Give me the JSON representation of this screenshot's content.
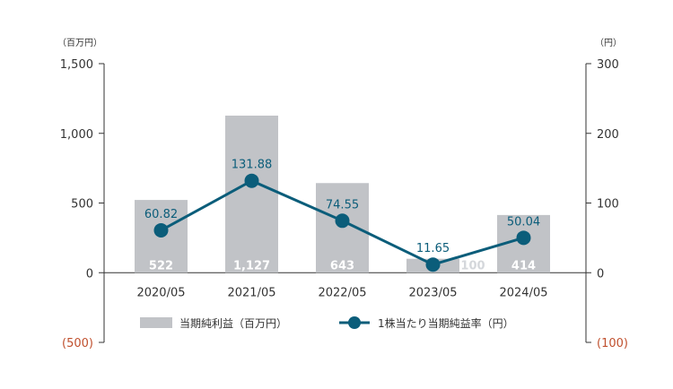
{
  "chart_data": {
    "type": "bar",
    "categories": [
      "2020/05",
      "2021/05",
      "2022/05",
      "2023/05",
      "2024/05"
    ],
    "series": [
      {
        "name": "当期純利益（百万円）",
        "type": "bar",
        "axis": "left",
        "values": [
          522,
          1127,
          643,
          100,
          414
        ],
        "value_labels": [
          "522",
          "1,127",
          "643",
          "100",
          "414"
        ],
        "color": "#c1c3c7"
      },
      {
        "name": "1株当たり当期純益率（円）",
        "type": "line",
        "axis": "right",
        "values": [
          60.82,
          131.88,
          74.55,
          11.65,
          50.04
        ],
        "value_labels": [
          "60.82",
          "131.88",
          "74.55",
          "11.65",
          "50.04"
        ],
        "color": "#0b5d7a"
      }
    ],
    "y_left": {
      "unit": "（百万円）",
      "ylim": [
        -500,
        1500
      ],
      "ticks": [
        1500,
        1000,
        500,
        0,
        -500
      ],
      "tick_labels": [
        "1,500",
        "1,000",
        "500",
        "0",
        "(500)"
      ]
    },
    "y_right": {
      "unit": "（円）",
      "ylim": [
        -100,
        300
      ],
      "ticks": [
        300,
        200,
        100,
        0,
        -100
      ],
      "tick_labels": [
        "300",
        "200",
        "100",
        "0",
        "(100)"
      ]
    },
    "negative_tick_color": "#c0502e",
    "grid": false,
    "legend": "bottom"
  }
}
